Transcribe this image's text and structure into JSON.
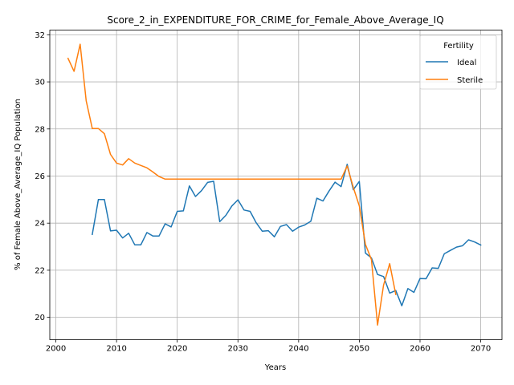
{
  "chart_data": {
    "type": "line",
    "title": "Score_2_in_EXPENDITURE_FOR_CRIME_for_Female_Above_Average_IQ",
    "xlabel": "Years",
    "ylabel": "% of Female Above_Average_IQ Population",
    "xlim": [
      1999,
      2073.5
    ],
    "ylim": [
      19.05,
      32.2
    ],
    "xticks": [
      2000,
      2010,
      2020,
      2030,
      2040,
      2050,
      2060,
      2070
    ],
    "yticks": [
      20,
      22,
      24,
      26,
      28,
      30,
      32
    ],
    "grid": true,
    "legend": {
      "title": "Fertility",
      "placement": "top-right"
    },
    "series": [
      {
        "name": "Ideal",
        "color": "#1f77b4",
        "x": [
          2006,
          2007,
          2008,
          2009,
          2010,
          2011,
          2012,
          2013,
          2014,
          2015,
          2016,
          2017,
          2018,
          2019,
          2020,
          2021,
          2022,
          2023,
          2024,
          2025,
          2026,
          2027,
          2028,
          2029,
          2030,
          2031,
          2032,
          2033,
          2034,
          2035,
          2036,
          2037,
          2038,
          2039,
          2040,
          2041,
          2042,
          2043,
          2044,
          2045,
          2046,
          2047,
          2048,
          2049,
          2050,
          2051,
          2052,
          2053,
          2054,
          2055,
          2056,
          2057,
          2058,
          2059,
          2060,
          2061,
          2062,
          2063,
          2064,
          2065,
          2066,
          2067,
          2068,
          2069,
          2070
        ],
        "values": [
          23.52,
          25.0,
          25.0,
          23.67,
          23.7,
          23.37,
          23.57,
          23.08,
          23.08,
          23.6,
          23.45,
          23.45,
          23.97,
          23.84,
          24.5,
          24.52,
          25.58,
          25.13,
          25.38,
          25.73,
          25.78,
          24.06,
          24.33,
          24.73,
          24.99,
          24.56,
          24.5,
          24.02,
          23.66,
          23.68,
          23.42,
          23.86,
          23.94,
          23.66,
          23.83,
          23.92,
          24.08,
          25.06,
          24.94,
          25.36,
          25.74,
          25.55,
          26.5,
          25.42,
          25.77,
          22.73,
          22.52,
          21.82,
          21.73,
          21.03,
          21.14,
          20.49,
          21.22,
          21.06,
          21.65,
          21.64,
          22.1,
          22.08,
          22.7,
          22.84,
          22.98,
          23.04,
          23.29,
          23.2,
          23.07
        ]
      },
      {
        "name": "Sterile",
        "color": "#ff7f0e",
        "x": [
          2002,
          2003,
          2004,
          2005,
          2006,
          2007,
          2008,
          2009,
          2010,
          2011,
          2012,
          2013,
          2014,
          2015,
          2016,
          2017,
          2018,
          2019,
          2020,
          2021,
          2022,
          2023,
          2024,
          2025,
          2026,
          2027,
          2028,
          2029,
          2030,
          2031,
          2032,
          2033,
          2034,
          2035,
          2036,
          2037,
          2038,
          2039,
          2040,
          2041,
          2042,
          2043,
          2044,
          2045,
          2046,
          2047,
          2048,
          2049,
          2050,
          2051,
          2052,
          2053,
          2054,
          2055,
          2056
        ],
        "values": [
          31.0,
          30.45,
          31.6,
          29.2,
          28.02,
          28.02,
          27.8,
          26.92,
          26.55,
          26.47,
          26.74,
          26.55,
          26.45,
          26.35,
          26.17,
          25.98,
          25.87,
          25.87,
          25.87,
          25.87,
          25.87,
          25.87,
          25.87,
          25.87,
          25.87,
          25.87,
          25.87,
          25.87,
          25.87,
          25.87,
          25.87,
          25.87,
          25.87,
          25.87,
          25.87,
          25.87,
          25.87,
          25.87,
          25.87,
          25.87,
          25.87,
          25.87,
          25.87,
          25.87,
          25.87,
          25.87,
          26.43,
          25.52,
          24.73,
          23.1,
          22.45,
          19.67,
          21.37,
          22.28,
          20.97
        ]
      }
    ]
  }
}
